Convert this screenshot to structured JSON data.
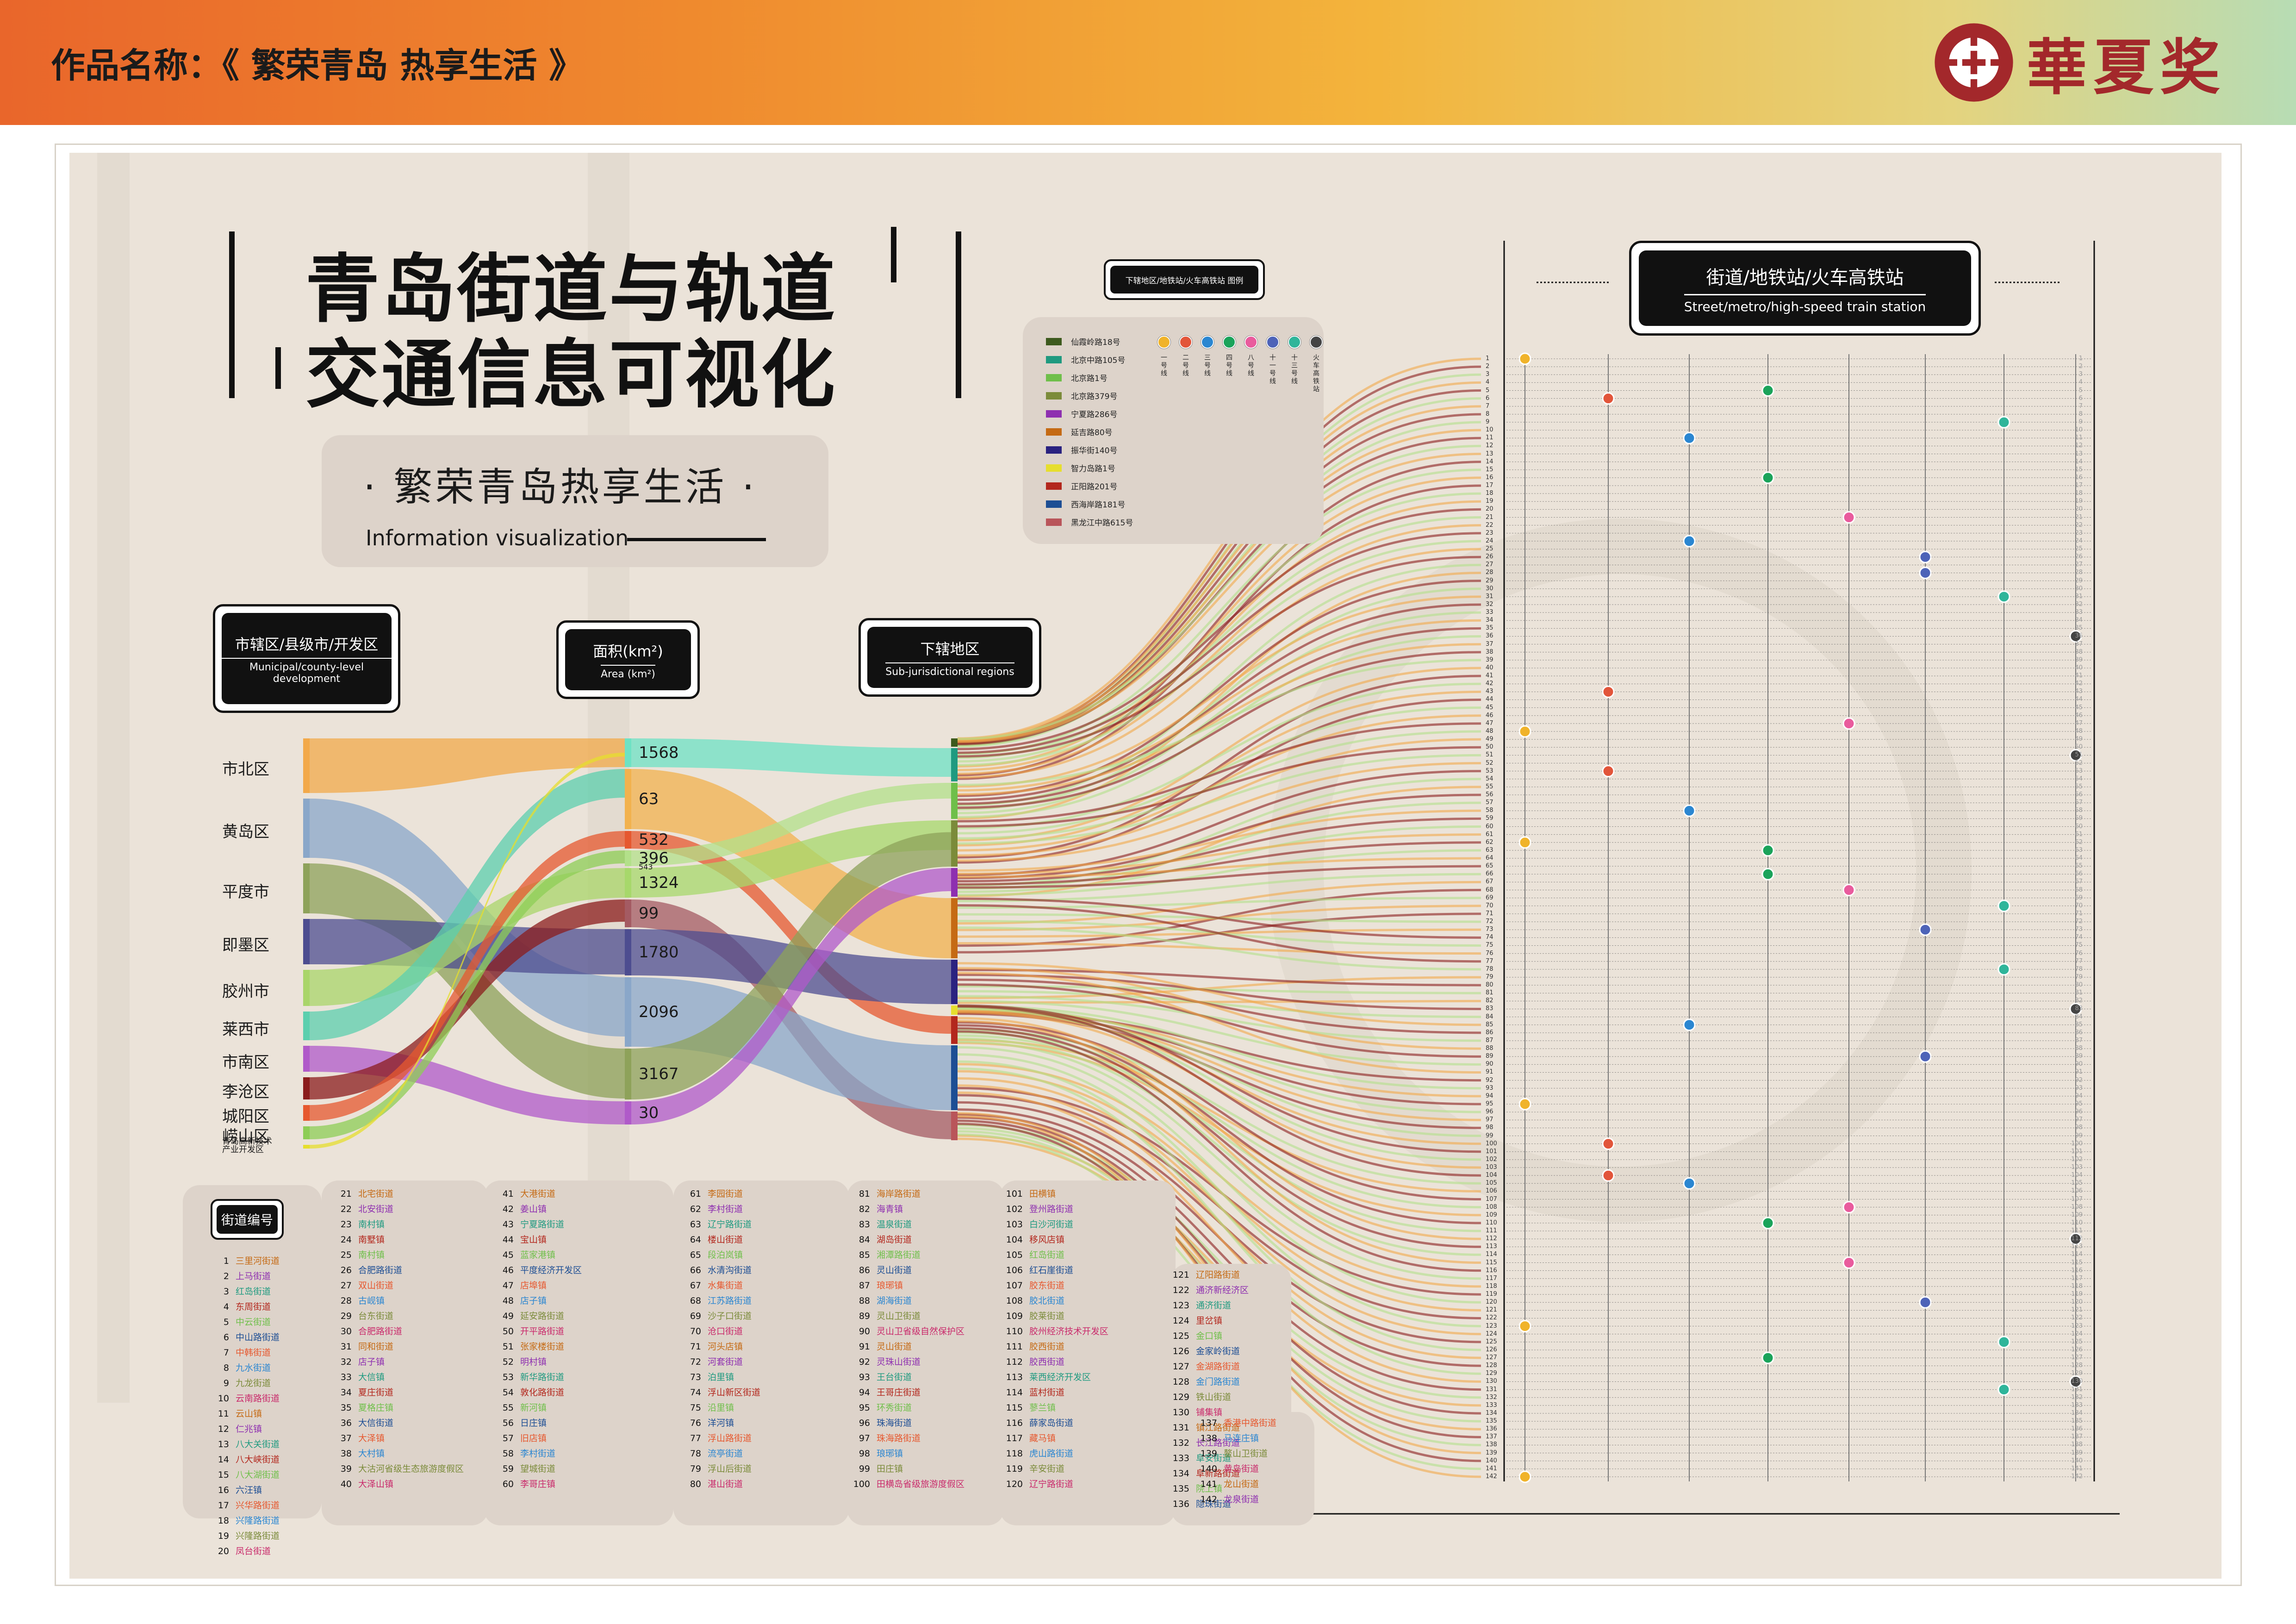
{
  "header": {
    "work_title": "作品名称：《 繁荣青岛 热享生活 》",
    "logo_text": "華夏奖"
  },
  "poster": {
    "title_line1": "青岛街道与轨道",
    "title_line2": "交通信息可视化",
    "subtitle_cn": "· 繁荣青岛热享生活 ·",
    "subtitle_en": "Information visualization",
    "col_district_cn": "市辖区/县级市/开发区",
    "col_district_en": "Municipal/county-level development",
    "col_area_cn": "面积(km²)",
    "col_area_en": "Area (km²)",
    "col_sub_cn": "下辖地区",
    "col_sub_en": "Sub-jurisdictional regions",
    "station_cn": "街道/地铁站/火车高铁站",
    "station_en": "Street/metro/high-speed train station",
    "legend_title": "下辖地区/地铁站/火车高铁站  图例",
    "code_box": "街道编号"
  },
  "district_legend": [
    {
      "name": "仙霞岭路18号",
      "color": "#3d5a1e"
    },
    {
      "name": "北京中路105号",
      "color": "#1f9a80"
    },
    {
      "name": "北京路1号",
      "color": "#6fbf4a"
    },
    {
      "name": "北京路379号",
      "color": "#7b8b3a"
    },
    {
      "name": "宁夏路286号",
      "color": "#8e2fb0"
    },
    {
      "name": "延吉路80号",
      "color": "#c56a14"
    },
    {
      "name": "振华街140号",
      "color": "#2a2280"
    },
    {
      "name": "智力岛路1号",
      "color": "#e6de2e"
    },
    {
      "name": "正阳路201号",
      "color": "#b3271d"
    },
    {
      "name": "西海岸路181号",
      "color": "#1d4e94"
    },
    {
      "name": "黑龙江中路615号",
      "color": "#b9555a"
    }
  ],
  "metro_lines": [
    {
      "label": "一号线",
      "color": "#f0b32a"
    },
    {
      "label": "二号线",
      "color": "#e2553a"
    },
    {
      "label": "三号线",
      "color": "#2a86d1"
    },
    {
      "label": "四号线",
      "color": "#1aa35a"
    },
    {
      "label": "八号线",
      "color": "#e95b9d"
    },
    {
      "label": "十一号线",
      "color": "#4d63b8"
    },
    {
      "label": "十三号线",
      "color": "#2fb59a"
    },
    {
      "label": "火车高铁站",
      "color": "#444444"
    }
  ],
  "chart_data": {
    "type": "sankey",
    "districts": [
      "市北区",
      "黄岛区",
      "平度市",
      "即墨区",
      "胶州市",
      "莱西市",
      "市南区",
      "李沧区",
      "城阳区",
      "崂山区",
      "青岛高新技术产业开发区"
    ],
    "areas": [
      "1568",
      "63",
      "532",
      "396",
      "1324",
      "99",
      "1780",
      "2096",
      "3167",
      "30"
    ],
    "area_small_label": "543",
    "district_colors": [
      "#f2a94a",
      "#8aa7c9",
      "#8ea25a",
      "#4d4d90",
      "#a9d56a",
      "#5ccfae",
      "#b05ac9",
      "#8b1c1c",
      "#e6582f",
      "#8dcd55",
      "#e6de2e"
    ],
    "district_heights": [
      118,
      128,
      108,
      98,
      78,
      62,
      56,
      48,
      34,
      28,
      8
    ],
    "area_colors": [
      "#6ee2c4",
      "#f2b24e",
      "#e6582f",
      "#b3e08a",
      "#a7d86b",
      "#a45b63",
      "#4d4d90",
      "#8aa7c9",
      "#8ea25a",
      "#b05ac9"
    ],
    "area_heights": [
      62,
      130,
      38,
      34,
      64,
      60,
      100,
      150,
      110,
      50
    ],
    "sub_colors": [
      "#3d5a1e",
      "#1f9a80",
      "#6fbf4a",
      "#7b8b3a",
      "#8e2fb0",
      "#c56a14",
      "#2a2280",
      "#e6de2e",
      "#b3271d",
      "#1d4e94",
      "#b9555a"
    ],
    "sub_heights": [
      18,
      72,
      78,
      100,
      62,
      130,
      96,
      20,
      60,
      140,
      62
    ],
    "station_rows": 142
  },
  "streets": [
    [
      "1",
      "三里河街道"
    ],
    [
      "2",
      "上马街道"
    ],
    [
      "3",
      "红岛街道"
    ],
    [
      "4",
      "东周街道"
    ],
    [
      "5",
      "中云街道"
    ],
    [
      "6",
      "中山路街道"
    ],
    [
      "7",
      "中韩街道"
    ],
    [
      "8",
      "九水街道"
    ],
    [
      "9",
      "九龙街道"
    ],
    [
      "10",
      "云南路街道"
    ],
    [
      "11",
      "云山镇"
    ],
    [
      "12",
      "仁兆镇"
    ],
    [
      "13",
      "八大关街道"
    ],
    [
      "14",
      "八大峡街道"
    ],
    [
      "15",
      "八大湖街道"
    ],
    [
      "16",
      "六汪镇"
    ],
    [
      "17",
      "兴华路街道"
    ],
    [
      "18",
      "兴隆路街道"
    ],
    [
      "19",
      "兴隆路街道"
    ],
    [
      "20",
      "凤台街道"
    ],
    [
      "21",
      "北宅街道"
    ],
    [
      "22",
      "北安街道"
    ],
    [
      "23",
      "南村镇"
    ],
    [
      "24",
      "南墅镇"
    ],
    [
      "25",
      "南村镇"
    ],
    [
      "26",
      "合肥路街道"
    ],
    [
      "27",
      "双山街道"
    ],
    [
      "28",
      "古岘镇"
    ],
    [
      "29",
      "台东街道"
    ],
    [
      "30",
      "合肥路街道"
    ],
    [
      "31",
      "同和街道"
    ],
    [
      "32",
      "店子镇"
    ],
    [
      "33",
      "大信镇"
    ],
    [
      "34",
      "夏庄街道"
    ],
    [
      "35",
      "夏格庄镇"
    ],
    [
      "36",
      "大信街道"
    ],
    [
      "37",
      "大泽镇"
    ],
    [
      "38",
      "大村镇"
    ],
    [
      "39",
      "大沽河省级生态旅游度假区"
    ],
    [
      "40",
      "大泽山镇"
    ],
    [
      "41",
      "大港街道"
    ],
    [
      "42",
      "姜山镇"
    ],
    [
      "43",
      "宁夏路街道"
    ],
    [
      "44",
      "宝山镇"
    ],
    [
      "45",
      "蓝家港镇"
    ],
    [
      "46",
      "平度经济开发区"
    ],
    [
      "47",
      "店埠镇"
    ],
    [
      "48",
      "店子镇"
    ],
    [
      "49",
      "延安路街道"
    ],
    [
      "50",
      "开平路街道"
    ],
    [
      "51",
      "张家楼街道"
    ],
    [
      "52",
      "明村镇"
    ],
    [
      "53",
      "新华路街道"
    ],
    [
      "54",
      "敦化路街道"
    ],
    [
      "55",
      "新河镇"
    ],
    [
      "56",
      "日庄镇"
    ],
    [
      "57",
      "旧店镇"
    ],
    [
      "58",
      "李村街道"
    ],
    [
      "59",
      "望城街道"
    ],
    [
      "60",
      "李哥庄镇"
    ],
    [
      "61",
      "李园街道"
    ],
    [
      "62",
      "李村街道"
    ],
    [
      "63",
      "辽宁路街道"
    ],
    [
      "64",
      "楼山街道"
    ],
    [
      "65",
      "段泊岚镇"
    ],
    [
      "66",
      "水清沟街道"
    ],
    [
      "67",
      "水集街道"
    ],
    [
      "68",
      "江苏路街道"
    ],
    [
      "69",
      "沙子口街道"
    ],
    [
      "70",
      "沧口街道"
    ],
    [
      "71",
      "河头店镇"
    ],
    [
      "72",
      "河套街道"
    ],
    [
      "73",
      "泊里镇"
    ],
    [
      "74",
      "浮山新区街道"
    ],
    [
      "75",
      "沿里镇"
    ],
    [
      "76",
      "洋河镇"
    ],
    [
      "77",
      "浮山路街道"
    ],
    [
      "78",
      "流亭街道"
    ],
    [
      "79",
      "浮山后街道"
    ],
    [
      "80",
      "湛山街道"
    ],
    [
      "81",
      "海岸路街道"
    ],
    [
      "82",
      "海青镇"
    ],
    [
      "83",
      "温泉街道"
    ],
    [
      "84",
      "湖岛街道"
    ],
    [
      "85",
      "湘潭路街道"
    ],
    [
      "86",
      "灵山街道"
    ],
    [
      "87",
      "琅琊镇"
    ],
    [
      "88",
      "湖海街道"
    ],
    [
      "89",
      "灵山卫街道"
    ],
    [
      "90",
      "灵山卫省级自然保护区"
    ],
    [
      "91",
      "灵山街道"
    ],
    [
      "92",
      "灵珠山街道"
    ],
    [
      "93",
      "王台街道"
    ],
    [
      "94",
      "王哥庄街道"
    ],
    [
      "95",
      "环秀街道"
    ],
    [
      "96",
      "珠海街道"
    ],
    [
      "97",
      "珠海路街道"
    ],
    [
      "98",
      "琅琊镇"
    ],
    [
      "99",
      "田庄镇"
    ],
    [
      "100",
      "田横岛省级旅游度假区"
    ],
    [
      "101",
      "田横镇"
    ],
    [
      "102",
      "登州路街道"
    ],
    [
      "103",
      "白沙河街道"
    ],
    [
      "104",
      "移风店镇"
    ],
    [
      "105",
      "红岛街道"
    ],
    [
      "106",
      "红石崖街道"
    ],
    [
      "107",
      "胶东街道"
    ],
    [
      "108",
      "胶北街道"
    ],
    [
      "109",
      "胶莱街道"
    ],
    [
      "110",
      "胶州经济技术开发区"
    ],
    [
      "111",
      "胶西街道"
    ],
    [
      "112",
      "胶西街道"
    ],
    [
      "113",
      "莱西经济开发区"
    ],
    [
      "114",
      "蓝村街道"
    ],
    [
      "115",
      "蓼兰镇"
    ],
    [
      "116",
      "薛家岛街道"
    ],
    [
      "117",
      "藏马镇"
    ],
    [
      "118",
      "虎山路街道"
    ],
    [
      "119",
      "辛安街道"
    ],
    [
      "120",
      "辽宁路街道"
    ],
    [
      "121",
      "辽阳路街道"
    ],
    [
      "122",
      "通济新经济区"
    ],
    [
      "123",
      "通济街道"
    ],
    [
      "124",
      "里岔镇"
    ],
    [
      "125",
      "金口镇"
    ],
    [
      "126",
      "金家岭街道"
    ],
    [
      "127",
      "金湖路街道"
    ],
    [
      "128",
      "金门路街道"
    ],
    [
      "129",
      "铁山街道"
    ],
    [
      "130",
      "铺集镇"
    ],
    [
      "131",
      "镇江路街道"
    ],
    [
      "132",
      "长江路街道"
    ],
    [
      "133",
      "阜安街道"
    ],
    [
      "134",
      "阜新路街道"
    ],
    [
      "135",
      "院上镇"
    ],
    [
      "136",
      "隐珠街道"
    ],
    [
      "137",
      "香港中路街道"
    ],
    [
      "138",
      "马连庄镇"
    ],
    [
      "139",
      "鳌山卫街道"
    ],
    [
      "140",
      "黄岛街道"
    ],
    [
      "141",
      "龙山街道"
    ],
    [
      "142",
      "龙泉街道"
    ]
  ]
}
